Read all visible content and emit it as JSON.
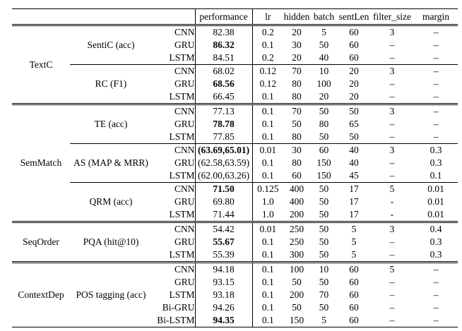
{
  "table": {
    "columns": [
      "performance",
      "lr",
      "hidden",
      "batch",
      "sentLen",
      "filter_size",
      "margin"
    ],
    "groups": [
      {
        "category": "TextC",
        "tasks": [
          {
            "task": "SentiC (acc)",
            "rows": [
              {
                "model": "CNN",
                "performance": "82.38",
                "bold": false,
                "params": [
                  "0.2",
                  "20",
                  "5",
                  "60",
                  "3",
                  "–"
                ]
              },
              {
                "model": "GRU",
                "performance": "86.32",
                "bold": true,
                "params": [
                  "0.1",
                  "30",
                  "50",
                  "60",
                  "–",
                  "–"
                ]
              },
              {
                "model": "LSTM",
                "performance": "84.51",
                "bold": false,
                "params": [
                  "0.2",
                  "20",
                  "40",
                  "60",
                  "–",
                  "–"
                ]
              }
            ]
          },
          {
            "task": "RC (F1)",
            "rows": [
              {
                "model": "CNN",
                "performance": "68.02",
                "bold": false,
                "params": [
                  "0.12",
                  "70",
                  "10",
                  "20",
                  "3",
                  "–"
                ]
              },
              {
                "model": "GRU",
                "performance": "68.56",
                "bold": true,
                "params": [
                  "0.12",
                  "80",
                  "100",
                  "20",
                  "–",
                  "–"
                ]
              },
              {
                "model": "LSTM",
                "performance": "66.45",
                "bold": false,
                "params": [
                  "0.1",
                  "80",
                  "20",
                  "20",
                  "–",
                  "–"
                ]
              }
            ]
          }
        ]
      },
      {
        "category": "SemMatch",
        "tasks": [
          {
            "task": "TE (acc)",
            "rows": [
              {
                "model": "CNN",
                "performance": "77.13",
                "bold": false,
                "params": [
                  "0.1",
                  "70",
                  "50",
                  "50",
                  "3",
                  "–"
                ]
              },
              {
                "model": "GRU",
                "performance": "78.78",
                "bold": true,
                "params": [
                  "0.1",
                  "50",
                  "80",
                  "65",
                  "–",
                  "–"
                ]
              },
              {
                "model": "LSTM",
                "performance": "77.85",
                "bold": false,
                "params": [
                  "0.1",
                  "80",
                  "50",
                  "50",
                  "–",
                  "–"
                ]
              }
            ]
          },
          {
            "task": "AS (MAP & MRR)",
            "rows": [
              {
                "model": "CNN",
                "performance": "(63.69,65.01)",
                "bold": true,
                "params": [
                  "0.01",
                  "30",
                  "60",
                  "40",
                  "3",
                  "0.3"
                ]
              },
              {
                "model": "GRU",
                "performance": "(62.58,63.59)",
                "bold": false,
                "params": [
                  "0.1",
                  "80",
                  "150",
                  "40",
                  "–",
                  "0.3"
                ]
              },
              {
                "model": "LSTM",
                "performance": "(62.00,63.26)",
                "bold": false,
                "params": [
                  "0.1",
                  "60",
                  "150",
                  "45",
                  "–",
                  "0.1"
                ]
              }
            ]
          },
          {
            "task": "QRM (acc)",
            "rows": [
              {
                "model": "CNN",
                "performance": "71.50",
                "bold": true,
                "params": [
                  "0.125",
                  "400",
                  "50",
                  "17",
                  "5",
                  "0.01"
                ]
              },
              {
                "model": "GRU",
                "performance": "69.80",
                "bold": false,
                "params": [
                  "1.0",
                  "400",
                  "50",
                  "17",
                  "-",
                  "0.01"
                ]
              },
              {
                "model": "LSTM",
                "performance": "71.44",
                "bold": false,
                "params": [
                  "1.0",
                  "200",
                  "50",
                  "17",
                  "-",
                  "0.01"
                ]
              }
            ]
          }
        ]
      },
      {
        "category": "SeqOrder",
        "tasks": [
          {
            "task": "PQA (hit@10)",
            "rows": [
              {
                "model": "CNN",
                "performance": "54.42",
                "bold": false,
                "params": [
                  "0.01",
                  "250",
                  "50",
                  "5",
                  "3",
                  "0.4"
                ]
              },
              {
                "model": "GRU",
                "performance": "55.67",
                "bold": true,
                "params": [
                  "0.1",
                  "250",
                  "50",
                  "5",
                  "–",
                  "0.3"
                ]
              },
              {
                "model": "LSTM",
                "performance": "55.39",
                "bold": false,
                "params": [
                  "0.1",
                  "300",
                  "50",
                  "5",
                  "–",
                  "0.3"
                ]
              }
            ]
          }
        ]
      },
      {
        "category": "ContextDep",
        "tasks": [
          {
            "task": "POS tagging (acc)",
            "rows": [
              {
                "model": "CNN",
                "performance": "94.18",
                "bold": false,
                "params": [
                  "0.1",
                  "100",
                  "10",
                  "60",
                  "5",
                  "–"
                ]
              },
              {
                "model": "GRU",
                "performance": "93.15",
                "bold": false,
                "params": [
                  "0.1",
                  "50",
                  "50",
                  "60",
                  "–",
                  "–"
                ]
              },
              {
                "model": "LSTM",
                "performance": "93.18",
                "bold": false,
                "params": [
                  "0.1",
                  "200",
                  "70",
                  "60",
                  "–",
                  "–"
                ]
              },
              {
                "model": "Bi-GRU",
                "performance": "94.26",
                "bold": false,
                "params": [
                  "0.1",
                  "50",
                  "50",
                  "60",
                  "–",
                  "–"
                ]
              },
              {
                "model": "Bi-LSTM",
                "performance": "94.35",
                "bold": true,
                "params": [
                  "0.1",
                  "150",
                  "5",
                  "60",
                  "–",
                  "–"
                ]
              }
            ]
          }
        ]
      }
    ]
  }
}
